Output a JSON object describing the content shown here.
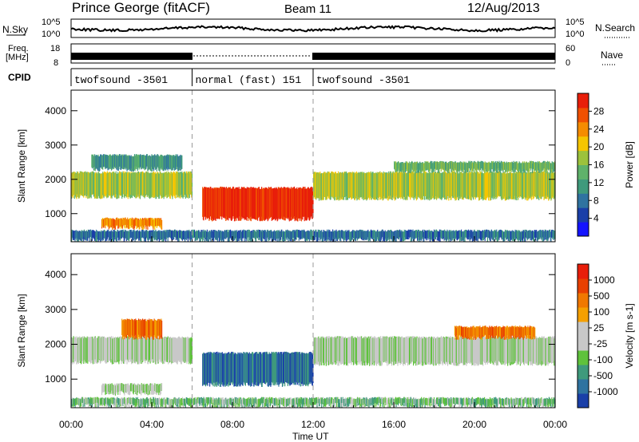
{
  "header": {
    "station": "Prince George (fitACF)",
    "beam": "Beam 11",
    "date": "12/Aug/2013"
  },
  "noise_panel": {
    "left_label": "N.Sky",
    "right_label": "N.Search",
    "left_ticks": [
      "10^5",
      "10^0"
    ],
    "right_ticks": [
      "10^5",
      "10^0"
    ]
  },
  "freq_panel": {
    "left_label_1": "Freq.",
    "left_label_2": "[MHz]",
    "left_ticks": [
      "18",
      "8"
    ],
    "right_label": "Nave",
    "right_ticks": [
      "60",
      "0"
    ]
  },
  "cpid_panel": {
    "label": "CPID",
    "segments": [
      {
        "label": "twofsound -3501",
        "start_hour": 0,
        "end_hour": 6
      },
      {
        "label": "normal (fast) 151",
        "start_hour": 6,
        "end_hour": 12
      },
      {
        "label": "twofsound -3501",
        "start_hour": 12,
        "end_hour": 24
      }
    ]
  },
  "time_axis": {
    "label": "Time UT",
    "ticks": [
      "00:00",
      "04:00",
      "08:00",
      "12:00",
      "16:00",
      "20:00",
      "00:00"
    ]
  },
  "chart_data": [
    {
      "type": "heatmap",
      "name": "power",
      "ylabel": "Slant Range [km]",
      "ylim": [
        180,
        4600
      ],
      "xlim": [
        0,
        24
      ],
      "y_ticks": [
        "1000",
        "2000",
        "3000",
        "4000"
      ],
      "y_tick_values": [
        1000,
        2000,
        3000,
        4000
      ],
      "colorbar": {
        "title": "Power [dB]",
        "ticks": [
          "4",
          "8",
          "12",
          "16",
          "20",
          "24",
          "28"
        ],
        "colors": [
          "#1414ff",
          "#1a3fa8",
          "#2f73a0",
          "#3f9a7c",
          "#5fb26a",
          "#9cc23c",
          "#f5c500",
          "#f58c00",
          "#f05000",
          "#e81e0a"
        ]
      },
      "regions": [
        {
          "t0": 0.0,
          "t1": 6.0,
          "r0": 1500,
          "r1": 2200,
          "level": 5
        },
        {
          "t0": 1.0,
          "t1": 5.5,
          "r0": 2300,
          "r1": 2700,
          "level": 3
        },
        {
          "t0": 1.5,
          "t1": 4.5,
          "r0": 600,
          "r1": 850,
          "level": 7
        },
        {
          "t0": 6.5,
          "t1": 12.0,
          "r0": 850,
          "r1": 1750,
          "level": 9
        },
        {
          "t0": 12.0,
          "t1": 24.0,
          "r0": 1450,
          "r1": 2200,
          "level": 5
        },
        {
          "t0": 16.0,
          "t1": 24.0,
          "r0": 2250,
          "r1": 2500,
          "level": 4
        },
        {
          "t0": 0.0,
          "t1": 24.0,
          "r0": 250,
          "r1": 500,
          "level": 2
        }
      ]
    },
    {
      "type": "heatmap",
      "name": "velocity",
      "ylabel": "Slant Range [km]",
      "ylim": [
        180,
        4600
      ],
      "xlim": [
        0,
        24
      ],
      "y_ticks": [
        "1000",
        "2000",
        "3000",
        "4000"
      ],
      "y_tick_values": [
        1000,
        2000,
        3000,
        4000
      ],
      "colorbar": {
        "title": "Velocity [m s-1]",
        "ticks": [
          "1000",
          "500",
          "100",
          "25",
          "-25",
          "-100",
          "-500",
          "-1000"
        ],
        "colors": [
          "#1a3fa8",
          "#2f73a0",
          "#3f9a7c",
          "#5fc23c",
          "#c8c8c8",
          "#c8c8c8",
          "#f5a000",
          "#f07800",
          "#e84000",
          "#e81e0a"
        ]
      },
      "regions": [
        {
          "t0": 0.0,
          "t1": 6.0,
          "r0": 1500,
          "r1": 2200,
          "level": 4
        },
        {
          "t0": 2.5,
          "t1": 4.5,
          "r0": 2200,
          "r1": 2700,
          "level": 7
        },
        {
          "t0": 1.5,
          "t1": 4.5,
          "r0": 600,
          "r1": 850,
          "level": 4
        },
        {
          "t0": 6.5,
          "t1": 12.0,
          "r0": 850,
          "r1": 1750,
          "level": 1
        },
        {
          "t0": 12.0,
          "t1": 24.0,
          "r0": 1450,
          "r1": 2200,
          "level": 4
        },
        {
          "t0": 19.0,
          "t1": 23.0,
          "r0": 2200,
          "r1": 2500,
          "level": 7
        },
        {
          "t0": 0.0,
          "t1": 24.0,
          "r0": 250,
          "r1": 450,
          "level": 3
        }
      ]
    }
  ]
}
